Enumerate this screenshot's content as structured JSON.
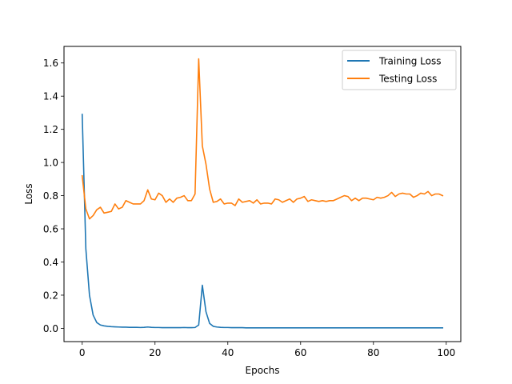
{
  "chart_data": {
    "type": "line",
    "xlabel": "Epochs",
    "ylabel": "Loss",
    "xlim": [
      -5,
      104
    ],
    "ylim": [
      -0.08,
      1.7
    ],
    "xticks": [
      0,
      20,
      40,
      60,
      80,
      100
    ],
    "yticks": [
      0.0,
      0.2,
      0.4,
      0.6,
      0.8,
      1.0,
      1.2,
      1.4,
      1.6
    ],
    "xtick_labels": [
      "0",
      "20",
      "40",
      "60",
      "80",
      "100"
    ],
    "ytick_labels": [
      "0.0",
      "0.2",
      "0.4",
      "0.6",
      "0.8",
      "1.0",
      "1.2",
      "1.4",
      "1.6"
    ],
    "legend_position": "top-right",
    "grid": false,
    "series": [
      {
        "name": "Training Loss",
        "color": "#1f77b4",
        "x": [
          0,
          1,
          2,
          3,
          4,
          5,
          6,
          7,
          8,
          9,
          10,
          11,
          12,
          13,
          14,
          15,
          16,
          17,
          18,
          19,
          20,
          21,
          22,
          23,
          24,
          25,
          26,
          27,
          28,
          29,
          30,
          31,
          32,
          33,
          34,
          35,
          36,
          37,
          38,
          39,
          40,
          41,
          42,
          43,
          44,
          45,
          46,
          47,
          48,
          49,
          50,
          51,
          52,
          53,
          54,
          55,
          56,
          57,
          58,
          59,
          60,
          61,
          62,
          63,
          64,
          65,
          66,
          67,
          68,
          69,
          70,
          71,
          72,
          73,
          74,
          75,
          76,
          77,
          78,
          79,
          80,
          81,
          82,
          83,
          84,
          85,
          86,
          87,
          88,
          89,
          90,
          91,
          92,
          93,
          94,
          95,
          96,
          97,
          98,
          99
        ],
        "values": [
          1.29,
          0.48,
          0.2,
          0.08,
          0.035,
          0.02,
          0.015,
          0.012,
          0.01,
          0.009,
          0.008,
          0.007,
          0.007,
          0.006,
          0.006,
          0.006,
          0.005,
          0.006,
          0.008,
          0.006,
          0.005,
          0.005,
          0.004,
          0.004,
          0.004,
          0.004,
          0.004,
          0.004,
          0.005,
          0.004,
          0.004,
          0.005,
          0.02,
          0.26,
          0.1,
          0.03,
          0.012,
          0.008,
          0.006,
          0.005,
          0.005,
          0.004,
          0.004,
          0.004,
          0.004,
          0.003,
          0.003,
          0.003,
          0.003,
          0.003,
          0.003,
          0.003,
          0.003,
          0.003,
          0.003,
          0.003,
          0.003,
          0.003,
          0.003,
          0.003,
          0.003,
          0.003,
          0.003,
          0.003,
          0.003,
          0.003,
          0.003,
          0.003,
          0.003,
          0.003,
          0.003,
          0.003,
          0.003,
          0.003,
          0.003,
          0.003,
          0.003,
          0.003,
          0.003,
          0.003,
          0.003,
          0.003,
          0.003,
          0.003,
          0.003,
          0.003,
          0.003,
          0.003,
          0.003,
          0.003,
          0.003,
          0.003,
          0.003,
          0.003,
          0.003,
          0.003,
          0.003,
          0.003,
          0.003,
          0.003
        ]
      },
      {
        "name": "Testing Loss",
        "color": "#ff7f0e",
        "x": [
          0,
          1,
          2,
          3,
          4,
          5,
          6,
          7,
          8,
          9,
          10,
          11,
          12,
          13,
          14,
          15,
          16,
          17,
          18,
          19,
          20,
          21,
          22,
          23,
          24,
          25,
          26,
          27,
          28,
          29,
          30,
          31,
          32,
          33,
          34,
          35,
          36,
          37,
          38,
          39,
          40,
          41,
          42,
          43,
          44,
          45,
          46,
          47,
          48,
          49,
          50,
          51,
          52,
          53,
          54,
          55,
          56,
          57,
          58,
          59,
          60,
          61,
          62,
          63,
          64,
          65,
          66,
          67,
          68,
          69,
          70,
          71,
          72,
          73,
          74,
          75,
          76,
          77,
          78,
          79,
          80,
          81,
          82,
          83,
          84,
          85,
          86,
          87,
          88,
          89,
          90,
          91,
          92,
          93,
          94,
          95,
          96,
          97,
          98,
          99
        ],
        "values": [
          0.92,
          0.72,
          0.66,
          0.68,
          0.715,
          0.73,
          0.695,
          0.7,
          0.705,
          0.75,
          0.72,
          0.73,
          0.77,
          0.76,
          0.75,
          0.75,
          0.75,
          0.77,
          0.835,
          0.78,
          0.775,
          0.815,
          0.8,
          0.76,
          0.78,
          0.76,
          0.785,
          0.79,
          0.8,
          0.77,
          0.77,
          0.81,
          1.625,
          1.1,
          0.99,
          0.84,
          0.76,
          0.765,
          0.78,
          0.75,
          0.755,
          0.755,
          0.74,
          0.78,
          0.76,
          0.765,
          0.77,
          0.755,
          0.775,
          0.75,
          0.755,
          0.755,
          0.75,
          0.78,
          0.775,
          0.76,
          0.77,
          0.78,
          0.76,
          0.78,
          0.785,
          0.795,
          0.765,
          0.775,
          0.77,
          0.765,
          0.77,
          0.765,
          0.77,
          0.77,
          0.78,
          0.79,
          0.8,
          0.795,
          0.77,
          0.785,
          0.77,
          0.785,
          0.785,
          0.78,
          0.775,
          0.79,
          0.785,
          0.79,
          0.8,
          0.82,
          0.795,
          0.81,
          0.815,
          0.81,
          0.81,
          0.79,
          0.8,
          0.815,
          0.81,
          0.825,
          0.8,
          0.81,
          0.81,
          0.8
        ]
      }
    ]
  }
}
